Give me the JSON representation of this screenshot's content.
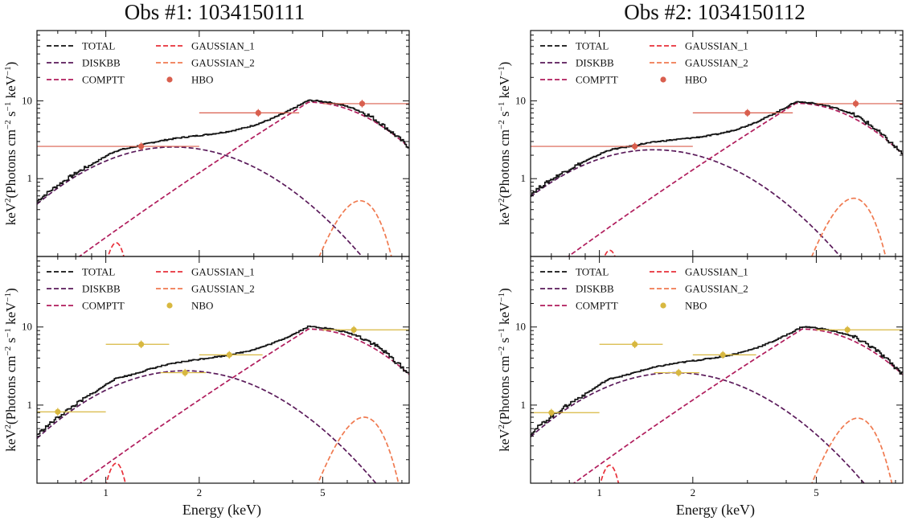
{
  "figure": {
    "xlabel": "Energy (keV)",
    "ylabel_main": "keV",
    "ylabel_sup2": "2",
    "ylabel_rest": "(Photons cm",
    "ylabel_exp1": "−2",
    "ylabel_s": " s",
    "ylabel_exp2": "−1",
    "ylabel_kev": " keV",
    "ylabel_exp3": "−1",
    "ylabel_close": ")"
  },
  "colors": {
    "total": "#111111",
    "diskbb": "#5a1a5a",
    "comptt": "#b01c5c",
    "gaussian_1": "#e8303a",
    "gaussian_2": "#f07a50",
    "hbo": "#d95f4e",
    "nbo": "#d8b840"
  },
  "chart_data": [
    {
      "type": "line",
      "title": "Obs #1: 1034150111",
      "xlabel": "",
      "xscale": "log",
      "yscale": "log",
      "xlim": [
        0.6,
        9.5
      ],
      "ylim": [
        0.1,
        80
      ],
      "xticks": [
        1,
        2,
        5
      ],
      "yticks": [
        1,
        10
      ],
      "legend": [
        "TOTAL",
        "DISKBB",
        "COMPTT",
        "GAUSSIAN_1",
        "GAUSSIAN_2",
        "HBO"
      ],
      "models": {
        "diskbb": {
          "peak_e": 1.65,
          "peak_f": 2.55,
          "width": 0.55
        },
        "comptt": {
          "peak_e": 4.5,
          "peak_f": 9.6,
          "width": 0.5,
          "slope": 1.6
        },
        "gauss1": {
          "center": 1.08,
          "peak": 0.15,
          "sigma": 0.07
        },
        "gauss2": {
          "center": 6.6,
          "peak": 0.52,
          "sigma": 0.95
        }
      },
      "points": {
        "name": "HBO",
        "x": [
          1.3,
          3.1,
          6.7
        ],
        "y": [
          2.6,
          7.0,
          9.2
        ],
        "xerr_low": [
          0.55,
          2.0,
          5.0
        ],
        "xerr_high": [
          2.0,
          4.2,
          9.5
        ]
      }
    },
    {
      "type": "line",
      "title": "Obs #2: 1034150112",
      "xlabel": "",
      "xscale": "log",
      "yscale": "log",
      "xlim": [
        0.6,
        9.5
      ],
      "ylim": [
        0.1,
        80
      ],
      "xticks": [
        1,
        2,
        5
      ],
      "yticks": [
        1,
        10
      ],
      "legend": [
        "TOTAL",
        "DISKBB",
        "COMPTT",
        "GAUSSIAN_1",
        "GAUSSIAN_2",
        "HBO"
      ],
      "models": {
        "diskbb": {
          "peak_e": 1.5,
          "peak_f": 2.35,
          "width": 0.55
        },
        "comptt": {
          "peak_e": 4.3,
          "peak_f": 9.3,
          "width": 0.5,
          "slope": 1.6
        },
        "gauss1": {
          "center": 1.08,
          "peak": 0.12,
          "sigma": 0.07
        },
        "gauss2": {
          "center": 6.6,
          "peak": 0.56,
          "sigma": 0.95
        }
      },
      "points": {
        "name": "HBO",
        "x": [
          1.3,
          3.0,
          6.7
        ],
        "y": [
          2.6,
          7.0,
          9.2
        ],
        "xerr_low": [
          0.55,
          2.0,
          5.0
        ],
        "xerr_high": [
          2.0,
          4.2,
          9.5
        ]
      }
    },
    {
      "type": "line",
      "title": "",
      "xlabel": "Energy (keV)",
      "xscale": "log",
      "yscale": "log",
      "xlim": [
        0.6,
        9.5
      ],
      "ylim": [
        0.1,
        80
      ],
      "xticks": [
        1,
        2,
        5
      ],
      "yticks": [
        1,
        10
      ],
      "legend": [
        "TOTAL",
        "DISKBB",
        "COMPTT",
        "GAUSSIAN_1",
        "GAUSSIAN_2",
        "NBO"
      ],
      "models": {
        "diskbb": {
          "peak_e": 1.8,
          "peak_f": 2.75,
          "width": 0.55
        },
        "comptt": {
          "peak_e": 4.5,
          "peak_f": 9.4,
          "width": 0.5,
          "slope": 1.6
        },
        "gauss1": {
          "center": 1.08,
          "peak": 0.18,
          "sigma": 0.07
        },
        "gauss2": {
          "center": 6.8,
          "peak": 0.7,
          "sigma": 1.0
        }
      },
      "points": {
        "name": "NBO",
        "x": [
          0.7,
          1.3,
          1.8,
          2.5,
          6.3
        ],
        "y": [
          0.82,
          6.0,
          2.6,
          4.4,
          9.2
        ],
        "xerr_low": [
          0.55,
          1.0,
          1.5,
          2.0,
          5.0
        ],
        "xerr_high": [
          1.0,
          1.6,
          2.1,
          3.2,
          9.5
        ]
      }
    },
    {
      "type": "line",
      "title": "",
      "xlabel": "Energy (keV)",
      "xscale": "log",
      "yscale": "log",
      "xlim": [
        0.6,
        9.5
      ],
      "ylim": [
        0.1,
        80
      ],
      "xticks": [
        1,
        2,
        5
      ],
      "yticks": [
        1,
        10
      ],
      "legend": [
        "TOTAL",
        "DISKBB",
        "COMPTT",
        "GAUSSIAN_1",
        "GAUSSIAN_2",
        "NBO"
      ],
      "models": {
        "diskbb": {
          "peak_e": 1.75,
          "peak_f": 2.6,
          "width": 0.55
        },
        "comptt": {
          "peak_e": 4.5,
          "peak_f": 9.4,
          "width": 0.5,
          "slope": 1.6
        },
        "gauss1": {
          "center": 1.08,
          "peak": 0.17,
          "sigma": 0.07
        },
        "gauss2": {
          "center": 6.8,
          "peak": 0.68,
          "sigma": 1.0
        }
      },
      "points": {
        "name": "NBO",
        "x": [
          0.7,
          1.3,
          1.8,
          2.5,
          6.3
        ],
        "y": [
          0.8,
          6.0,
          2.6,
          4.4,
          9.2
        ],
        "xerr_low": [
          0.55,
          1.0,
          1.5,
          2.0,
          5.0
        ],
        "xerr_high": [
          1.0,
          1.6,
          2.1,
          3.2,
          9.5
        ]
      }
    }
  ]
}
